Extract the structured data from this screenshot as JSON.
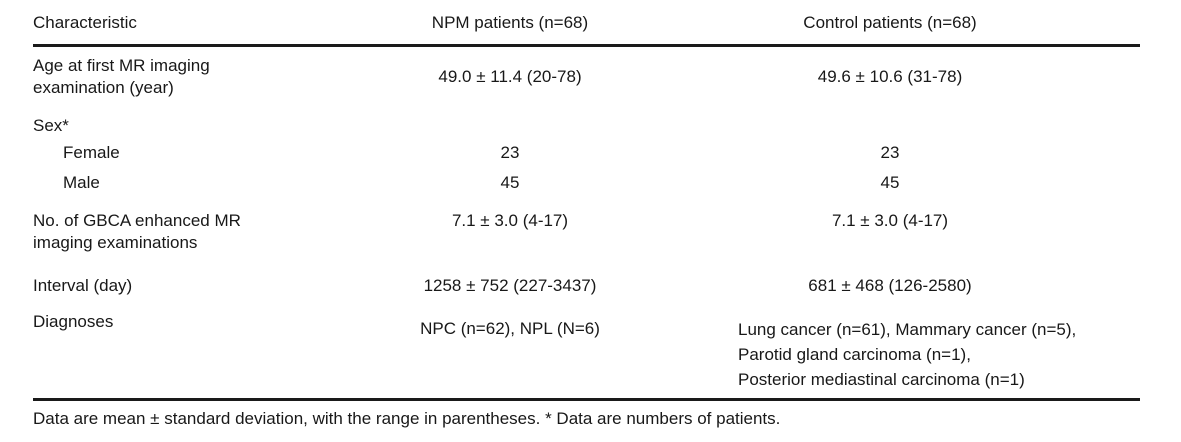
{
  "table": {
    "columns": [
      "Characteristic",
      "NPM patients (n=68)",
      "Control patients (n=68)"
    ],
    "rows": [
      {
        "label": "Age at first MR imaging\nexamination (year)",
        "npm": "49.0 ± 11.4 (20-78)",
        "control": "49.6 ± 10.6 (31-78)"
      },
      {
        "label": "Sex*"
      },
      {
        "label": "Female",
        "npm": "23",
        "control": "23"
      },
      {
        "label": "Male",
        "npm": "45",
        "control": "45"
      },
      {
        "label": "No. of GBCA enhanced MR\nimaging examinations",
        "npm": "7.1 ± 3.0 (4-17)",
        "control": "7.1 ± 3.0 (4-17)"
      },
      {
        "label": "Interval (day)",
        "npm": "1258 ± 752 (227-3437)",
        "control": "681 ± 468 (126-2580)"
      },
      {
        "label": "Diagnoses",
        "npm": "NPC (n=62), NPL (N=6)",
        "control": "Lung cancer (n=61), Mammary cancer (n=5),\nParotid gland carcinoma (n=1),\nPosterior mediastinal carcinoma (n=1)"
      }
    ],
    "footnote": "Data are mean ± standard deviation, with the range in parentheses. * Data are numbers of patients."
  },
  "colors": {
    "text": "#181818",
    "rule": "#1a1a1a",
    "background": "#ffffff"
  }
}
